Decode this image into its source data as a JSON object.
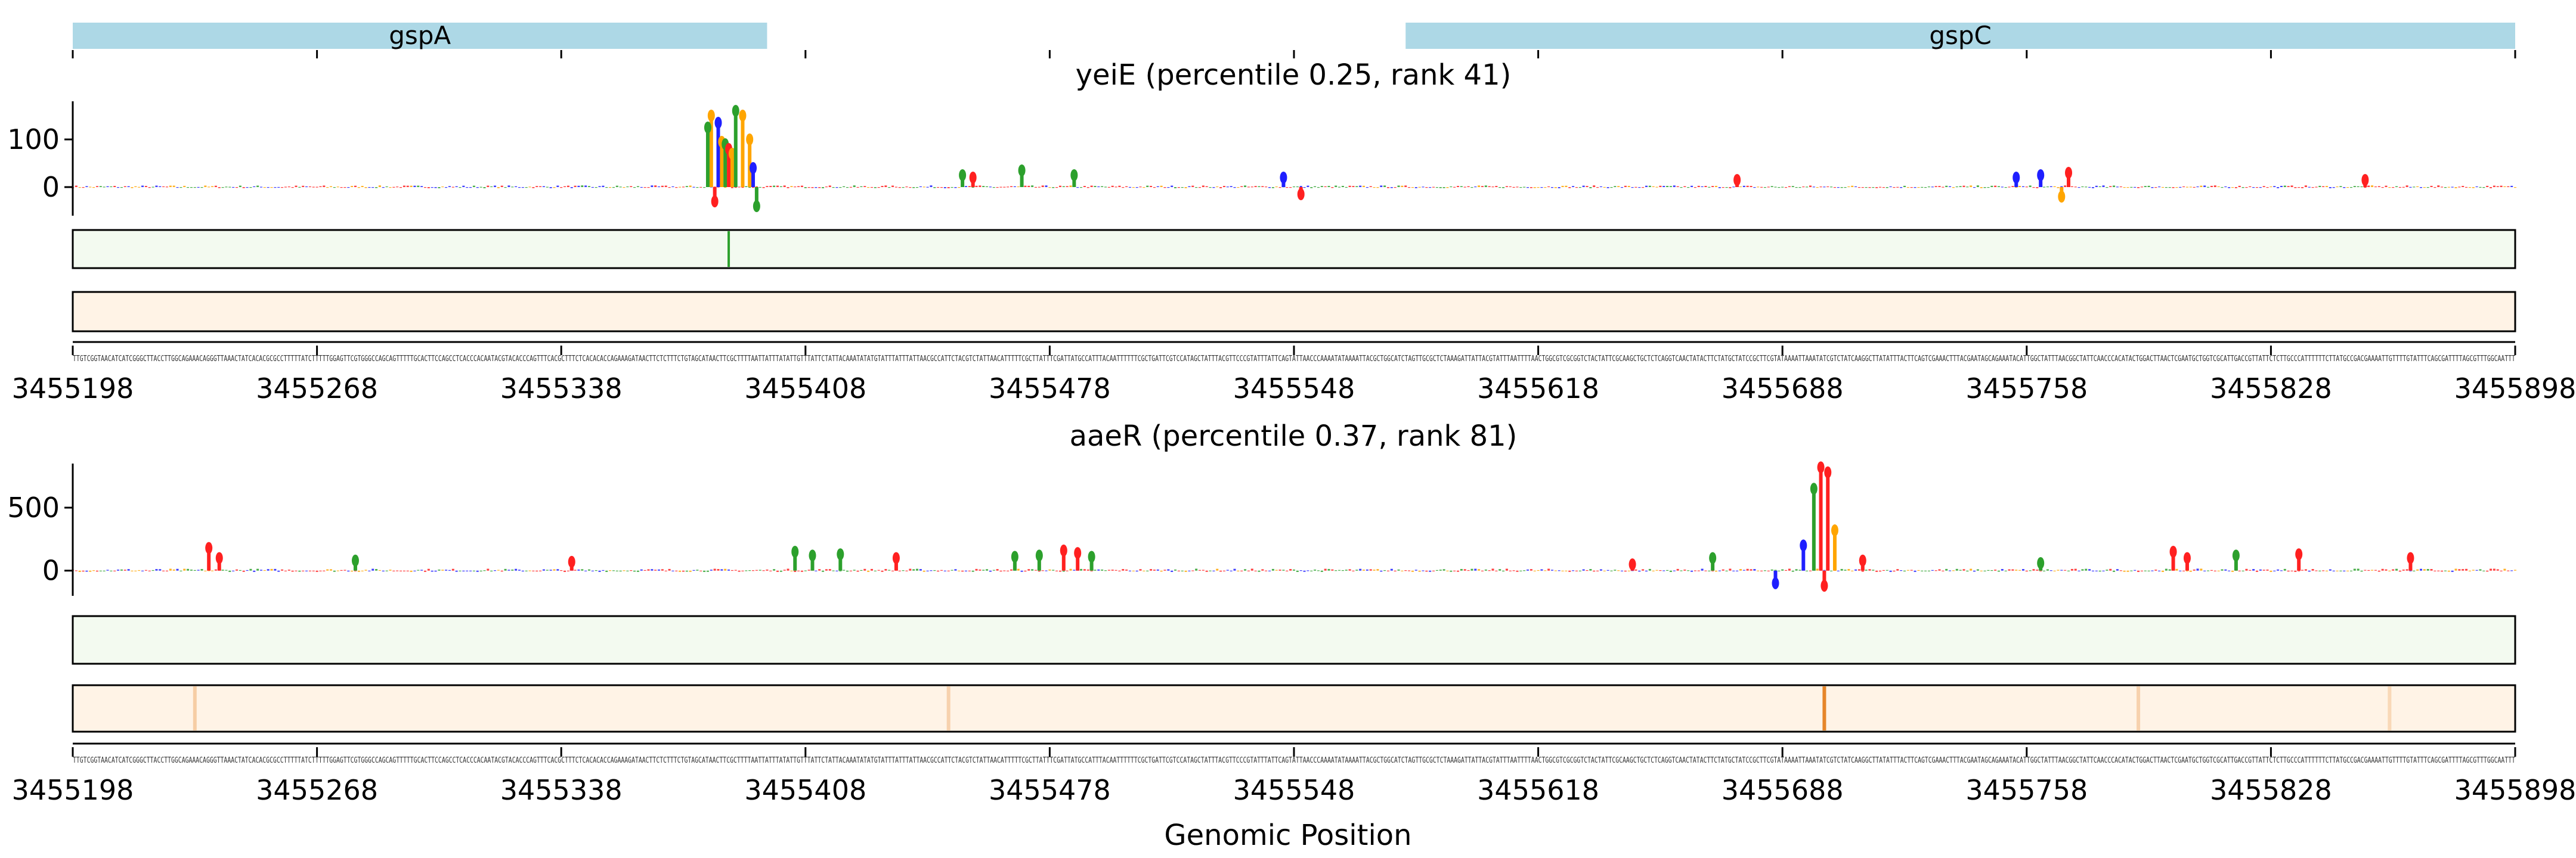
{
  "chart_data": {
    "type": "sequence-attribution-track",
    "xlabel": "Genomic Position",
    "x_range": [
      3455198,
      3455898
    ],
    "x_ticks": [
      3455198,
      3455268,
      3455338,
      3455408,
      3455478,
      3455548,
      3455618,
      3455688,
      3455758,
      3455828,
      3455898
    ],
    "genes": [
      {
        "name": "gspA",
        "start": 3455198,
        "end": 3455397
      },
      {
        "name": "gspC",
        "start": 3455580,
        "end": 3455898
      }
    ],
    "colors": {
      "A": "#2ca02c",
      "C": "#1f1fff",
      "G": "#ffa500",
      "T": "#ff2020",
      "gene": "#add8e6",
      "green_strip": "#f3faf0",
      "orange_strip": "#fff3e6",
      "green_mark": "#2ca02c",
      "orange_mark": "#e6862a"
    },
    "sequence": "TTGTCGGTAACATCATCGGGCTTACCTTGGCAGAAACAGGGTTAAACTATCACACGCGCCTTTTTATCTTTTTGGAGTTCGTGGGCCAGCAGTTTTTGCACTTCCAGCCTCACCCACAATACGTACACCCAGTTTCACGCTTTCTCACACACCAGAAAGATAACTTCTCTTTCTGTAGCATAACTTCGCTTTTAATTATTTATATTGTTTATTCTATTACAAATATATGTATTTATTTATTAACGCCATTCTACGTCTATTAACATTTTTCGCTTATTTCGATTATGCCATTTACAATTTTTTCGCTGATTCGTCCATAGCTATTTACGTTCCCGTATTTATTCAGTATTAACCCAAAATATAAAATTACGCTGGCATCTAGTTGCGCTCTAAAGATTATTACGTATTTAATTTTAACTGGCGTCGCGGTCTACTATTCGCAAGCTGCTCTCAGGTCAACTATACTTCTATGCTATCCGCTTCGTATAAAATTAAATATCGTCTATCAAGGCTTATATTTACTTCAGTCGAAACTTTACGAATAGCAGAAATACATTGGCTATTTAACGGCTATTCAACCCACATACTGGACTTAACTCGAATGCTGGTCGCATTGACCGTTATTCTCTTGCCCATTTTTTCTTATGCCGACGAAAATTGTTTTGTATTTCAGCGATTTTAGCGTTTGGCAATTT",
    "panels": [
      {
        "title": "yeiE (percentile 0.25, rank 41)",
        "yticks": [
          0,
          100
        ],
        "ylim": [
          -60,
          180
        ],
        "bumps": [
          {
            "pos": 3455381,
            "value": 150,
            "base": "G"
          },
          {
            "pos": 3455380,
            "value": 125,
            "base": "A"
          },
          {
            "pos": 3455383,
            "value": 135,
            "base": "C"
          },
          {
            "pos": 3455384,
            "value": 95,
            "base": "G"
          },
          {
            "pos": 3455385,
            "value": 90,
            "base": "A"
          },
          {
            "pos": 3455386,
            "value": 80,
            "base": "T"
          },
          {
            "pos": 3455387,
            "value": 70,
            "base": "G"
          },
          {
            "pos": 3455388,
            "value": 160,
            "base": "A"
          },
          {
            "pos": 3455390,
            "value": 150,
            "base": "G"
          },
          {
            "pos": 3455392,
            "value": 100,
            "base": "G"
          },
          {
            "pos": 3455393,
            "value": 40,
            "base": "C"
          },
          {
            "pos": 3455394,
            "value": -40,
            "base": "A"
          },
          {
            "pos": 3455382,
            "value": -30,
            "base": "T"
          },
          {
            "pos": 3455453,
            "value": 25,
            "base": "A"
          },
          {
            "pos": 3455456,
            "value": 20,
            "base": "T"
          },
          {
            "pos": 3455470,
            "value": 35,
            "base": "A"
          },
          {
            "pos": 3455485,
            "value": 25,
            "base": "A"
          },
          {
            "pos": 3455545,
            "value": 20,
            "base": "C"
          },
          {
            "pos": 3455550,
            "value": -15,
            "base": "T"
          },
          {
            "pos": 3455675,
            "value": 15,
            "base": "T"
          },
          {
            "pos": 3455755,
            "value": 20,
            "base": "C"
          },
          {
            "pos": 3455762,
            "value": 25,
            "base": "C"
          },
          {
            "pos": 3455770,
            "value": 30,
            "base": "T"
          },
          {
            "pos": 3455768,
            "value": -20,
            "base": "G"
          },
          {
            "pos": 3455855,
            "value": 15,
            "base": "T"
          }
        ],
        "green_marks": [
          {
            "pos": 3455386,
            "strength": 1.0
          }
        ],
        "orange_marks": []
      },
      {
        "title": "aaeR (percentile 0.37, rank 81)",
        "yticks": [
          0,
          500
        ],
        "ylim": [
          -200,
          850
        ],
        "bumps": [
          {
            "pos": 3455237,
            "value": 180,
            "base": "T"
          },
          {
            "pos": 3455240,
            "value": 100,
            "base": "T"
          },
          {
            "pos": 3455279,
            "value": 80,
            "base": "A"
          },
          {
            "pos": 3455341,
            "value": 70,
            "base": "T"
          },
          {
            "pos": 3455405,
            "value": 150,
            "base": "A"
          },
          {
            "pos": 3455410,
            "value": 120,
            "base": "A"
          },
          {
            "pos": 3455418,
            "value": 130,
            "base": "A"
          },
          {
            "pos": 3455434,
            "value": 100,
            "base": "T"
          },
          {
            "pos": 3455468,
            "value": 110,
            "base": "A"
          },
          {
            "pos": 3455475,
            "value": 120,
            "base": "A"
          },
          {
            "pos": 3455482,
            "value": 160,
            "base": "T"
          },
          {
            "pos": 3455486,
            "value": 140,
            "base": "T"
          },
          {
            "pos": 3455490,
            "value": 110,
            "base": "A"
          },
          {
            "pos": 3455645,
            "value": 50,
            "base": "T"
          },
          {
            "pos": 3455668,
            "value": 100,
            "base": "A"
          },
          {
            "pos": 3455686,
            "value": -100,
            "base": "C"
          },
          {
            "pos": 3455694,
            "value": 200,
            "base": "C"
          },
          {
            "pos": 3455697,
            "value": 650,
            "base": "A"
          },
          {
            "pos": 3455699,
            "value": 820,
            "base": "T"
          },
          {
            "pos": 3455701,
            "value": 780,
            "base": "T"
          },
          {
            "pos": 3455703,
            "value": 320,
            "base": "G"
          },
          {
            "pos": 3455700,
            "value": -120,
            "base": "T"
          },
          {
            "pos": 3455711,
            "value": 80,
            "base": "T"
          },
          {
            "pos": 3455762,
            "value": 60,
            "base": "A"
          },
          {
            "pos": 3455800,
            "value": 150,
            "base": "T"
          },
          {
            "pos": 3455804,
            "value": 100,
            "base": "T"
          },
          {
            "pos": 3455818,
            "value": 120,
            "base": "A"
          },
          {
            "pos": 3455836,
            "value": 130,
            "base": "T"
          },
          {
            "pos": 3455868,
            "value": 100,
            "base": "T"
          }
        ],
        "green_marks": [],
        "orange_marks": [
          {
            "pos": 3455700,
            "strength": 1.0
          },
          {
            "pos": 3455233,
            "strength": 0.35
          },
          {
            "pos": 3455449,
            "strength": 0.3
          },
          {
            "pos": 3455790,
            "strength": 0.3
          },
          {
            "pos": 3455862,
            "strength": 0.25
          }
        ]
      }
    ]
  }
}
